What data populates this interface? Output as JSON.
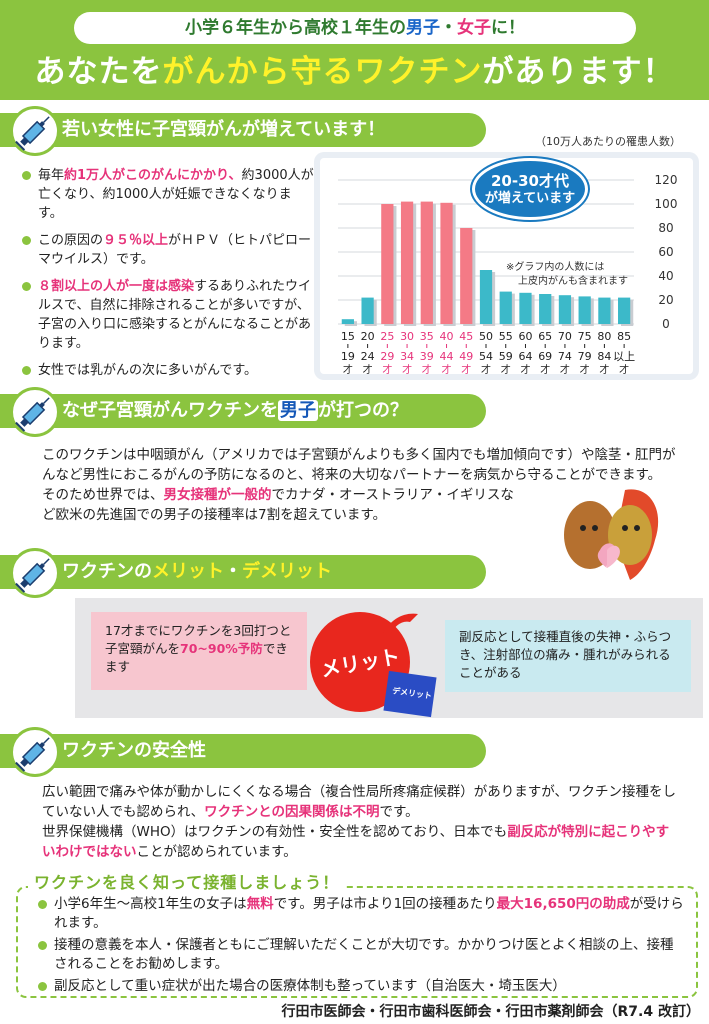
{
  "header": {
    "subtitle_a": "小学６年生から高校１年生の",
    "subtitle_boy": "男子",
    "subtitle_dot": "・",
    "subtitle_girl": "女子",
    "subtitle_b": "に！",
    "title_a": "あなたを",
    "title_b": "がんから守るワクチン",
    "title_c": "があります！"
  },
  "section1": {
    "title": "若い女性に子宮頸がんが増えています！",
    "bullets": [
      {
        "a": "毎年",
        "b": "約1万人がこのがんにかかり、",
        "c": "約3000人が亡くなり、約1000人が妊娠できなくなります。"
      },
      {
        "a": "この原因の",
        "b": "９５％以上",
        "c": "がＨＰＶ（ヒトパピローマウイルス）です。"
      },
      {
        "a": "",
        "b": "８割以上の人が一度は感染",
        "c": "するありふれたウイルスで、自然に排除されることが多いですが、子宮の入り口に感染するとがんになることがあります。"
      },
      {
        "a": "女性では乳がんの次に多いがんです。",
        "b": "",
        "c": ""
      }
    ]
  },
  "chart_data": {
    "type": "bar",
    "title": "",
    "caption": "（10万人あたりの罹患人数）",
    "callout_l1": "20-30才代",
    "callout_l2": "が増えています",
    "note_l1": "※グラフ内の人数には",
    "note_l2": "上皮内がんも含まれます",
    "ylim": [
      0,
      120
    ],
    "yticks": [
      "0",
      "20",
      "40",
      "60",
      "80",
      "100",
      "120"
    ],
    "categories": [
      {
        "top": "15",
        "bottom": "19",
        "unit": "才",
        "highlight": false
      },
      {
        "top": "20",
        "bottom": "24",
        "unit": "才",
        "highlight": false
      },
      {
        "top": "25",
        "bottom": "29",
        "unit": "才",
        "highlight": true
      },
      {
        "top": "30",
        "bottom": "34",
        "unit": "才",
        "highlight": true
      },
      {
        "top": "35",
        "bottom": "39",
        "unit": "才",
        "highlight": true
      },
      {
        "top": "40",
        "bottom": "44",
        "unit": "才",
        "highlight": true
      },
      {
        "top": "45",
        "bottom": "49",
        "unit": "才",
        "highlight": true
      },
      {
        "top": "50",
        "bottom": "54",
        "unit": "才",
        "highlight": false
      },
      {
        "top": "55",
        "bottom": "59",
        "unit": "才",
        "highlight": false
      },
      {
        "top": "60",
        "bottom": "64",
        "unit": "才",
        "highlight": false
      },
      {
        "top": "65",
        "bottom": "69",
        "unit": "才",
        "highlight": false
      },
      {
        "top": "70",
        "bottom": "74",
        "unit": "才",
        "highlight": false
      },
      {
        "top": "75",
        "bottom": "79",
        "unit": "才",
        "highlight": false
      },
      {
        "top": "80",
        "bottom": "84",
        "unit": "才",
        "highlight": false
      },
      {
        "top": "85",
        "bottom": "以上",
        "unit": "才",
        "highlight": false
      }
    ],
    "values": [
      4,
      22,
      100,
      102,
      102,
      101,
      80,
      45,
      27,
      26,
      25,
      24,
      23,
      22,
      22
    ],
    "highlight_color": "#f47a86",
    "normal_color": "#3cb9c9"
  },
  "section2": {
    "title_a": "なぜ子宮頸がんワクチンを",
    "title_b": "男子",
    "title_c": "が打つの？",
    "p1": "このワクチンは中咽頭がん（アメリカでは子宮頸がんよりも多く国内でも増加傾向です）や陰茎・肛門がんなど男性におこるがんの予防になるのと、将来の大切なパートナーを病気から守ることができます。",
    "p2_a": "そのため世界では、",
    "p2_b": "男女接種が一般的",
    "p2_c": "でカナダ・オーストラリア・イギリスなど欧米の先進国での男子の接種率は7割を超えています。"
  },
  "section3": {
    "title_a": "ワクチンの",
    "title_b": "メリット",
    "title_c": "・",
    "title_d": "デメリット",
    "merit_a": "17才までにワクチンを3回打つと子宮頸がんを",
    "merit_b": "70~90%予防",
    "merit_c": "できます",
    "merit_label": "メリット",
    "demerit_label": "デメリット",
    "demerit_text": "副反応として接種直後の失神・ふらつき、注射部位の痛み・腫れがみられることがある"
  },
  "section4": {
    "title": "ワクチンの安全性",
    "p1_a": "広い範囲で痛みや体が動かしにくくなる場合（複合性局所疼痛症候群）がありますが、ワクチン接種をしていない人でも認められ、",
    "p1_b": "ワクチンとの因果関係は不明",
    "p1_c": "です。",
    "p2_a": "世界保健機構（WHO）はワクチンの有効性・安全性を認めており、日本でも",
    "p2_b": "副反応が特別に起こりやすいわけではない",
    "p2_c": "ことが認められています。"
  },
  "bottom": {
    "title": "ワクチンを良く知って接種しましょう！",
    "item1_a": "小学6年生〜高校1年生の女子は",
    "item1_b": "無料",
    "item1_c": "です。男子は市より1回の接種あたり",
    "item1_d": "最大16,650円の助成",
    "item1_e": "が受けられます。",
    "item2": "接種の意義を本人・保護者ともにご理解いただくことが大切です。かかりつけ医とよく相談の上、接種されることをお勧めします。",
    "item3": "副反応として重い症状が出た場合の医療体制も整っています（自治医大・埼玉医大）"
  },
  "footer": "行田市医師会・行田市歯科医師会・行田市薬剤師会（R7.4 改訂）"
}
